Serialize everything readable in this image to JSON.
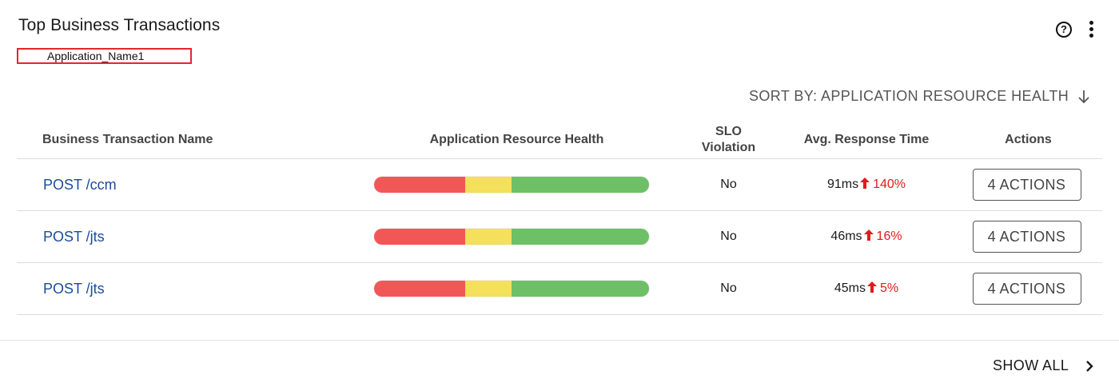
{
  "card": {
    "title": "Top Business Transactions",
    "application_name": "Application_Name1",
    "help_icon_glyph": "?",
    "sort_label": "SORT BY: APPLICATION RESOURCE HEALTH",
    "sort_icon": "arrow-down-icon",
    "menu_icon": "kebab-menu-icon"
  },
  "table": {
    "columns": {
      "name": "Business Transaction Name",
      "health": "Application Resource Health",
      "slo_line1": "SLO",
      "slo_line2": "Violation",
      "avg": "Avg. Response Time",
      "actions": "Actions"
    },
    "health_colors": [
      "#f25757",
      "#f4e05a",
      "#6dc066"
    ],
    "rows": [
      {
        "name": "POST /ccm",
        "health": [
          0.33,
          0.17,
          0.5
        ],
        "slo": "No",
        "avg": "91ms",
        "delta": "140%",
        "actions": "4 ACTIONS"
      },
      {
        "name": "POST /jts",
        "health": [
          0.33,
          0.17,
          0.5
        ],
        "slo": "No",
        "avg": "46ms",
        "delta": "16%",
        "actions": "4 ACTIONS"
      },
      {
        "name": "POST /jts",
        "health": [
          0.33,
          0.17,
          0.5
        ],
        "slo": "No",
        "avg": "45ms",
        "delta": "5%",
        "actions": "4 ACTIONS"
      }
    ]
  },
  "footer": {
    "show_all": "SHOW ALL",
    "chevron_icon": "chevron-right-icon"
  },
  "colors": {
    "link": "#1b4c99",
    "increase": "#e01b1b",
    "highlight_box": "#e8242b"
  }
}
